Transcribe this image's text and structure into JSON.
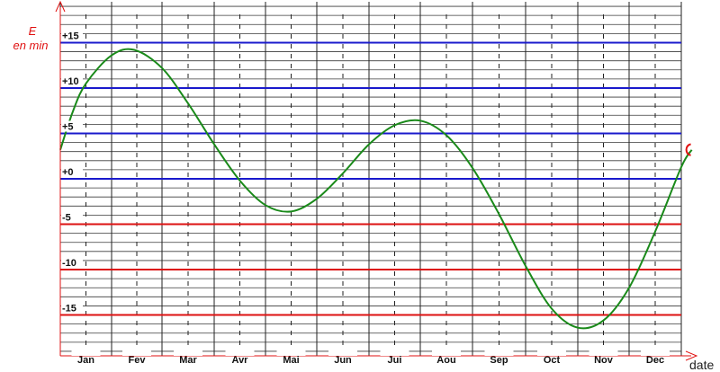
{
  "chart_data": {
    "type": "line",
    "y_label_line1": "E",
    "y_label_line2": "en min",
    "x_label": "date",
    "ylim": [
      -19.5,
      19.5
    ],
    "grid": true,
    "y_ticks": [
      {
        "value": 15,
        "label": "+15",
        "color": "#1a1acc"
      },
      {
        "value": 10,
        "label": "+10",
        "color": "#1a1acc"
      },
      {
        "value": 5,
        "label": "+5",
        "color": "#1a1acc"
      },
      {
        "value": 0,
        "label": "+0",
        "color": "#1a1acc"
      },
      {
        "value": -5,
        "label": "-5",
        "color": "#dd1111"
      },
      {
        "value": -10,
        "label": "-10",
        "color": "#dd1111"
      },
      {
        "value": -15,
        "label": "-15",
        "color": "#dd1111"
      }
    ],
    "months": [
      "Jan",
      "Fev",
      "Mar",
      "Avr",
      "Mai",
      "Jun",
      "Jui",
      "Aou",
      "Sep",
      "Oct",
      "Nov",
      "Dec"
    ],
    "series": [
      {
        "color": "#1a8a1a",
        "points": [
          {
            "month": 0.0,
            "value": 3.2
          },
          {
            "month": 0.25,
            "value": 7.5
          },
          {
            "month": 0.5,
            "value": 10.5
          },
          {
            "month": 1.0,
            "value": 13.6
          },
          {
            "month": 1.45,
            "value": 14.2
          },
          {
            "month": 2.0,
            "value": 12.2
          },
          {
            "month": 2.5,
            "value": 8.3
          },
          {
            "month": 3.0,
            "value": 3.8
          },
          {
            "month": 3.5,
            "value": -0.2
          },
          {
            "month": 4.0,
            "value": -2.9
          },
          {
            "month": 4.5,
            "value": -3.6
          },
          {
            "month": 5.0,
            "value": -2.2
          },
          {
            "month": 5.5,
            "value": 0.6
          },
          {
            "month": 6.0,
            "value": 3.8
          },
          {
            "month": 6.5,
            "value": 5.9
          },
          {
            "month": 7.0,
            "value": 6.4
          },
          {
            "month": 7.5,
            "value": 4.8
          },
          {
            "month": 8.0,
            "value": 1.2
          },
          {
            "month": 8.5,
            "value": -3.9
          },
          {
            "month": 9.0,
            "value": -9.6
          },
          {
            "month": 9.5,
            "value": -14.3
          },
          {
            "month": 10.0,
            "value": -16.4
          },
          {
            "month": 10.5,
            "value": -15.6
          },
          {
            "month": 11.0,
            "value": -12.0
          },
          {
            "month": 11.5,
            "value": -5.8
          },
          {
            "month": 12.0,
            "value": 1.3
          },
          {
            "month": 12.2,
            "value": 3.2
          }
        ]
      }
    ]
  }
}
